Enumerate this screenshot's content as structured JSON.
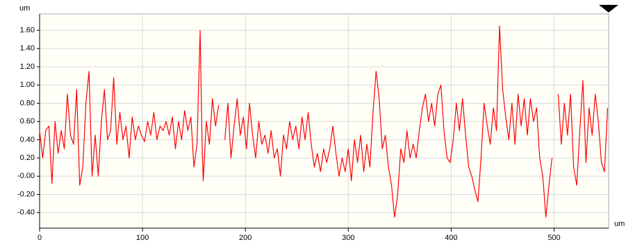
{
  "chart_data": {
    "type": "line",
    "y_unit_label": "um",
    "x_unit_label": "um",
    "x": [
      0,
      3,
      6,
      9,
      12,
      15,
      18,
      21,
      24,
      27,
      30,
      33,
      36,
      39,
      42,
      45,
      48,
      51,
      54,
      57,
      60,
      63,
      66,
      69,
      72,
      75,
      78,
      81,
      84,
      87,
      90,
      93,
      96,
      99,
      102,
      105,
      108,
      111,
      114,
      117,
      120,
      123,
      126,
      129,
      132,
      135,
      138,
      141,
      144,
      147,
      150,
      153,
      156,
      158,
      159,
      162,
      165,
      168,
      171,
      174,
      177,
      180,
      183,
      186,
      189,
      192,
      195,
      198,
      201,
      204,
      207,
      210,
      213,
      216,
      219,
      222,
      225,
      228,
      231,
      234,
      237,
      240,
      243,
      246,
      249,
      252,
      255,
      258,
      261,
      264,
      267,
      270,
      273,
      276,
      279,
      282,
      285,
      288,
      291,
      294,
      297,
      300,
      303,
      306,
      309,
      312,
      315,
      318,
      321,
      324,
      327,
      330,
      333,
      336,
      339,
      342,
      345,
      348,
      351,
      354,
      357,
      360,
      363,
      366,
      369,
      372,
      375,
      378,
      381,
      384,
      387,
      390,
      393,
      396,
      399,
      402,
      405,
      408,
      411,
      414,
      417,
      420,
      423,
      426,
      429,
      432,
      435,
      438,
      441,
      444,
      447,
      450,
      453,
      456,
      459,
      462,
      465,
      468,
      471,
      474,
      477,
      480,
      483,
      486,
      489,
      492,
      495,
      498,
      501,
      504,
      507,
      510,
      513,
      516,
      519,
      522,
      525,
      528,
      531,
      534,
      537,
      540,
      543,
      546,
      549,
      552
    ],
    "series": [
      {
        "color": "#ff0000",
        "values": [
          0.5,
          0.2,
          0.5,
          0.55,
          -0.08,
          0.6,
          0.25,
          0.5,
          0.3,
          0.9,
          0.45,
          0.35,
          0.95,
          -0.1,
          0.1,
          0.8,
          1.15,
          0.0,
          0.45,
          0.0,
          0.6,
          0.95,
          0.4,
          0.5,
          1.08,
          0.35,
          0.7,
          0.4,
          0.55,
          0.2,
          0.65,
          0.4,
          0.55,
          0.45,
          0.38,
          0.6,
          0.45,
          0.7,
          0.4,
          0.55,
          0.5,
          0.6,
          0.45,
          0.65,
          0.3,
          0.6,
          0.4,
          0.72,
          0.5,
          0.65,
          0.1,
          0.35,
          1.6,
          0.3,
          -0.05,
          0.6,
          0.35,
          0.85,
          0.55,
          0.78,
          null,
          0.4,
          0.8,
          0.2,
          0.55,
          0.85,
          0.45,
          0.65,
          0.3,
          0.8,
          0.45,
          0.2,
          0.6,
          0.35,
          0.45,
          0.25,
          0.5,
          0.2,
          0.3,
          0.0,
          0.45,
          0.3,
          0.6,
          0.4,
          0.55,
          0.3,
          0.65,
          0.4,
          0.7,
          0.35,
          0.1,
          0.25,
          0.05,
          0.3,
          0.15,
          0.3,
          0.55,
          0.25,
          0.0,
          0.2,
          0.05,
          0.3,
          -0.05,
          0.4,
          0.15,
          0.45,
          0.05,
          0.35,
          0.1,
          0.7,
          1.15,
          0.85,
          0.3,
          0.45,
          0.1,
          -0.1,
          -0.45,
          -0.2,
          0.3,
          0.15,
          0.5,
          0.2,
          0.35,
          0.2,
          0.5,
          0.75,
          0.9,
          0.6,
          0.8,
          0.55,
          0.9,
          1.0,
          0.5,
          0.2,
          0.15,
          0.4,
          0.8,
          0.5,
          0.85,
          0.45,
          0.1,
          0.0,
          -0.15,
          -0.28,
          0.2,
          0.8,
          0.55,
          0.35,
          0.75,
          0.5,
          1.65,
          0.95,
          0.65,
          0.4,
          0.8,
          0.35,
          0.9,
          0.55,
          0.85,
          0.45,
          0.85,
          0.6,
          0.75,
          0.2,
          0.0,
          -0.45,
          -0.1,
          0.2,
          null,
          0.9,
          0.35,
          0.8,
          0.45,
          0.9,
          0.1,
          -0.1,
          0.5,
          1.05,
          0.15,
          0.75,
          0.45,
          0.9,
          0.6,
          0.15,
          0.05,
          0.75
        ]
      }
    ],
    "xlim": [
      0,
      553
    ],
    "ylim": [
      -0.57,
      1.78
    ],
    "xticks": [
      0,
      100,
      200,
      300,
      400,
      500
    ],
    "yticks": [
      {
        "value": 1.6,
        "label": "1.60"
      },
      {
        "value": 1.4,
        "label": "1.40"
      },
      {
        "value": 1.2,
        "label": "1.20"
      },
      {
        "value": 1.0,
        "label": "1.00"
      },
      {
        "value": 0.8,
        "label": "0.80"
      },
      {
        "value": 0.6,
        "label": "0.60"
      },
      {
        "value": 0.4,
        "label": "0.40"
      },
      {
        "value": 0.2,
        "label": "0.20"
      },
      {
        "value": 0,
        "label": "-0.00"
      },
      {
        "value": -0.2,
        "label": "-0.20"
      },
      {
        "value": -0.4,
        "label": "-0.40"
      }
    ],
    "grid": true
  }
}
